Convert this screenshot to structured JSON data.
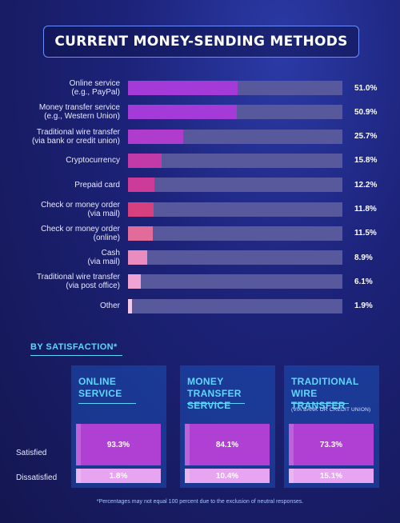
{
  "title": "CURRENT MONEY-SENDING METHODS",
  "chart_data": [
    {
      "type": "bar",
      "orientation": "horizontal",
      "title": "CURRENT MONEY-SENDING METHODS",
      "categories": [
        [
          "Online service",
          "(e.g., PayPal)"
        ],
        [
          "Money transfer service",
          "(e.g., Western Union)"
        ],
        [
          "Traditional wire transfer",
          "(via bank or credit union)"
        ],
        [
          "Cryptocurrency"
        ],
        [
          "Prepaid card"
        ],
        [
          "Check or money order",
          "(via mail)"
        ],
        [
          "Check or money order",
          "(online)"
        ],
        [
          "Cash",
          "(via mail)"
        ],
        [
          "Traditional wire transfer",
          "(via post office)"
        ],
        [
          "Other"
        ]
      ],
      "values": [
        51.0,
        50.9,
        25.7,
        15.8,
        12.2,
        11.8,
        11.5,
        8.9,
        6.1,
        1.9
      ],
      "value_labels": [
        "51.0%",
        "50.9%",
        "25.7%",
        "15.8%",
        "12.2%",
        "11.8%",
        "11.5%",
        "8.9%",
        "6.1%",
        "1.9%"
      ],
      "bar_colors": [
        "#a43bd8",
        "#a43bd8",
        "#b03ccd",
        "#c23aa8",
        "#cc3b98",
        "#d6407e",
        "#e16b99",
        "#ea8cc0",
        "#f0a4d4",
        "#f4c8e8"
      ],
      "xlim": [
        0,
        100
      ],
      "track_color": "#58599c"
    },
    {
      "type": "table",
      "title": "BY SATISFACTION*",
      "columns": [
        {
          "title_lines": [
            "ONLINE",
            "SERVICE"
          ],
          "subtitle": "",
          "satisfied": "93.3%",
          "dissatisfied": "1.8%"
        },
        {
          "title_lines": [
            "MONEY TRANSFER",
            "SERVICE"
          ],
          "subtitle": "",
          "satisfied": "84.1%",
          "dissatisfied": "10.4%"
        },
        {
          "title_lines": [
            "TRADITIONAL WIRE",
            "TRANSFER"
          ],
          "subtitle": "(VIA BANK OR CREDIT UNION)",
          "satisfied": "73.3%",
          "dissatisfied": "15.1%"
        }
      ],
      "rows": [
        "Satisfied",
        "Dissatisfied"
      ]
    }
  ],
  "footnote": "*Percentages may not equal 100 percent due to the exclusion of neutral responses."
}
